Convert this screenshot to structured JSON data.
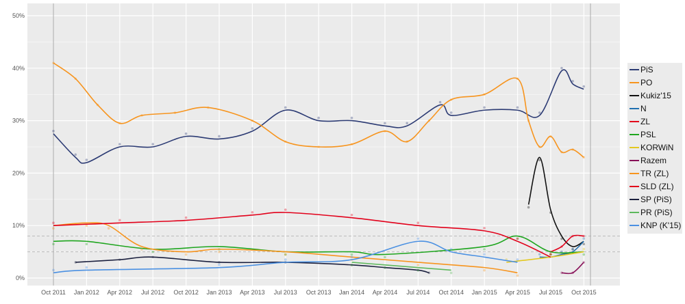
{
  "chart_data": {
    "type": "line",
    "title": "",
    "xlabel": "",
    "ylabel": "",
    "xlim": [
      "2011-09",
      "2015-11"
    ],
    "ylim": [
      0,
      50
    ],
    "y_ticks": [
      "0%",
      "10%",
      "20%",
      "30%",
      "40%",
      "50%"
    ],
    "x_ticks": [
      "Oct 2011",
      "Jan 2012",
      "Apr 2012",
      "Jul 2012",
      "Oct 2012",
      "Jan 2013",
      "Apr 2013",
      "Jul 2013",
      "Oct 2013",
      "Jan 2014",
      "Apr 2014",
      "Jul 2014",
      "Oct 2014",
      "Jan 2015",
      "Apr 2015",
      "Jul 2015",
      "Oct 2015"
    ],
    "grid": true,
    "legend_placement": "right",
    "thresholds": [
      5,
      8
    ],
    "series": [
      {
        "name": "PiS",
        "color": "#2b3a73",
        "x": [
          "2011-10",
          "2011-12",
          "2012-01",
          "2012-04",
          "2012-07",
          "2012-10",
          "2013-01",
          "2013-04",
          "2013-07",
          "2013-10",
          "2014-01",
          "2014-04",
          "2014-06",
          "2014-09",
          "2014-10",
          "2015-01",
          "2015-04",
          "2015-06",
          "2015-08",
          "2015-09",
          "2015-10"
        ],
        "y": [
          27.5,
          23,
          22,
          25,
          25,
          27,
          26.5,
          28,
          32,
          30,
          30,
          29,
          29,
          33,
          31,
          32,
          32,
          31,
          39.5,
          37,
          36
        ]
      },
      {
        "name": "PO",
        "color": "#f7941d",
        "x": [
          "2011-10",
          "2011-12",
          "2012-02",
          "2012-04",
          "2012-06",
          "2012-09",
          "2012-12",
          "2013-04",
          "2013-07",
          "2013-10",
          "2014-01",
          "2014-04",
          "2014-06",
          "2014-08",
          "2014-10",
          "2015-01",
          "2015-04",
          "2015-05",
          "2015-06",
          "2015-07",
          "2015-08",
          "2015-09",
          "2015-10"
        ],
        "y": [
          41,
          38,
          33,
          29.5,
          31,
          31.5,
          32.5,
          30,
          26,
          25,
          25.5,
          28,
          26,
          30,
          34,
          35,
          38,
          30,
          25,
          27,
          24,
          24.5,
          23
        ]
      },
      {
        "name": "Kukiz'15",
        "color": "#111111",
        "x": [
          "2015-05",
          "2015-06",
          "2015-07",
          "2015-08",
          "2015-09",
          "2015-10"
        ],
        "y": [
          14,
          23,
          13,
          8,
          6,
          7
        ]
      },
      {
        "name": "N",
        "color": "#1f6fb0",
        "x": [
          "2015-06",
          "2015-07",
          "2015-08",
          "2015-09",
          "2015-10"
        ],
        "y": [
          4,
          4,
          4.5,
          5,
          7
        ]
      },
      {
        "name": "ZL",
        "color": "#e2001a",
        "x": [
          "2015-07",
          "2015-08",
          "2015-09",
          "2015-10"
        ],
        "y": [
          5,
          6,
          8,
          8
        ]
      },
      {
        "name": "PSL",
        "color": "#1ea51e",
        "x": [
          "2011-10",
          "2012-01",
          "2012-07",
          "2013-01",
          "2013-07",
          "2014-01",
          "2014-04",
          "2015-01",
          "2015-04",
          "2015-07",
          "2015-10"
        ],
        "y": [
          7,
          7,
          5.5,
          6,
          5,
          5,
          4.5,
          6,
          8,
          5,
          5
        ]
      },
      {
        "name": "KORWiN",
        "color": "#e3c81f",
        "x": [
          "2015-03",
          "2015-07",
          "2015-10"
        ],
        "y": [
          3,
          4,
          5
        ]
      },
      {
        "name": "Razem",
        "color": "#870f57",
        "x": [
          "2015-08",
          "2015-09",
          "2015-10"
        ],
        "y": [
          1,
          1,
          3
        ]
      },
      {
        "name": "TR (ZL)",
        "color": "#f7941d",
        "x": [
          "2011-10",
          "2012-01",
          "2012-03",
          "2012-06",
          "2012-10",
          "2013-01",
          "2013-07",
          "2014-01",
          "2014-07",
          "2015-01",
          "2015-04"
        ],
        "y": [
          10,
          10.5,
          10,
          6,
          5,
          5.5,
          5,
          4,
          3,
          2,
          1
        ]
      },
      {
        "name": "SLD (ZL)",
        "color": "#e2001a",
        "x": [
          "2011-10",
          "2012-04",
          "2012-10",
          "2013-04",
          "2013-07",
          "2014-01",
          "2014-07",
          "2015-01",
          "2015-04",
          "2015-07"
        ],
        "y": [
          10,
          10.5,
          11,
          12,
          12.5,
          11.5,
          10,
          9,
          7,
          4
        ]
      },
      {
        "name": "SP (PiS)",
        "color": "#1a1f3d",
        "x": [
          "2011-12",
          "2012-04",
          "2012-07",
          "2013-01",
          "2013-07",
          "2014-01",
          "2014-04",
          "2014-07",
          "2014-08"
        ],
        "y": [
          3,
          3.5,
          4,
          3,
          3,
          2.5,
          2,
          1.5,
          1
        ]
      },
      {
        "name": "PR (PiS)",
        "color": "#5cb85c",
        "x": [
          "2014-01",
          "2014-04",
          "2014-07",
          "2014-10"
        ],
        "y": [
          3,
          2.5,
          2,
          1.5
        ]
      },
      {
        "name": "KNP (K'15)",
        "color": "#4a90e2",
        "x": [
          "2011-10",
          "2012-01",
          "2013-01",
          "2013-07",
          "2014-01",
          "2014-07",
          "2014-10",
          "2015-01",
          "2015-04"
        ],
        "y": [
          1,
          1.5,
          2,
          3,
          3.5,
          7,
          5,
          4,
          3
        ]
      }
    ]
  }
}
